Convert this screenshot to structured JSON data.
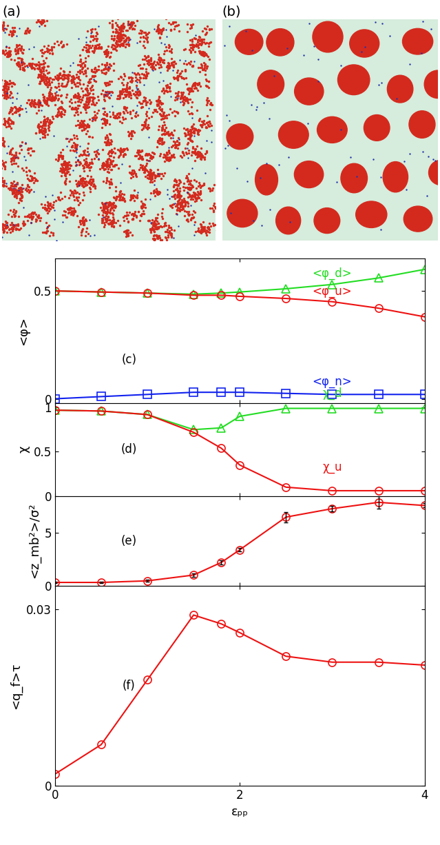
{
  "snapshots": [
    "(a)",
    "(b)"
  ],
  "chart_data": [
    {
      "type": "line",
      "panel": "(c)",
      "y_label": "<φ>",
      "x": [
        0,
        0.5,
        1,
        1.5,
        1.8,
        2,
        2.5,
        3,
        3.5,
        4
      ],
      "series": [
        {
          "name": "<φ_d>",
          "color": "#22dd22",
          "marker": "triangle",
          "values": [
            0.5,
            0.495,
            0.49,
            0.485,
            0.49,
            0.495,
            0.51,
            0.53,
            0.56,
            0.6
          ]
        },
        {
          "name": "<φ_u>",
          "color": "#ee1111",
          "marker": "circle",
          "values": [
            0.5,
            0.495,
            0.49,
            0.48,
            0.48,
            0.475,
            0.465,
            0.45,
            0.42,
            0.38
          ]
        },
        {
          "name": "<φ_n>",
          "color": "#1122ee",
          "marker": "square",
          "values": [
            0.0,
            0.01,
            0.02,
            0.03,
            0.03,
            0.03,
            0.025,
            0.02,
            0.02,
            0.02
          ]
        }
      ],
      "xlim": [
        0,
        4
      ],
      "xticks": [
        0,
        2,
        4
      ],
      "ylim": [
        -0.02,
        0.65
      ],
      "yticks": [
        0,
        0.5
      ],
      "tick_labels": "y"
    },
    {
      "type": "line",
      "panel": "(d)",
      "y_label": "χ",
      "x": [
        0,
        0.5,
        1,
        1.5,
        1.8,
        2,
        2.5,
        3,
        3.5,
        4
      ],
      "series": [
        {
          "name": "χ_d",
          "color": "#22dd22",
          "marker": "triangle",
          "values": [
            0.97,
            0.96,
            0.92,
            0.75,
            0.77,
            0.9,
            0.99,
            0.99,
            0.99,
            0.99
          ]
        },
        {
          "name": "χ_u",
          "color": "#ee1111",
          "marker": "circle",
          "values": [
            0.97,
            0.96,
            0.92,
            0.72,
            0.54,
            0.35,
            0.1,
            0.06,
            0.06,
            0.06
          ]
        }
      ],
      "xlim": [
        0,
        4
      ],
      "xticks": [
        0,
        2,
        4
      ],
      "ylim": [
        0,
        1.05
      ],
      "yticks": [
        0,
        0.5,
        1
      ],
      "tick_labels": "y"
    },
    {
      "type": "line",
      "panel": "(e)",
      "y_label": "<z_mb²>/σ²",
      "x": [
        0,
        0.5,
        1,
        1.5,
        1.8,
        2,
        2.5,
        3,
        3.5,
        4
      ],
      "series": [
        {
          "color": "#ee1111",
          "marker": "circle",
          "values": [
            0.3,
            0.3,
            0.45,
            1.0,
            2.2,
            3.4,
            6.5,
            7.3,
            7.9,
            7.6
          ],
          "errors": [
            0.05,
            0.05,
            0.1,
            0.15,
            0.2,
            0.15,
            0.5,
            0.25,
            0.6,
            0.2
          ]
        }
      ],
      "xlim": [
        0,
        4
      ],
      "xticks": [
        0,
        2,
        4
      ],
      "ylim": [
        0,
        8.5
      ],
      "yticks": [
        0,
        5
      ],
      "tick_labels": "y"
    },
    {
      "type": "line",
      "panel": "(f)",
      "y_label": "<q_f>τ",
      "x_label": "εₚₚ",
      "x": [
        0,
        0.5,
        1,
        1.5,
        1.8,
        2,
        2.5,
        3,
        3.5,
        4
      ],
      "series": [
        {
          "color": "#ee1111",
          "marker": "circle",
          "values": [
            0.002,
            0.007,
            0.018,
            0.029,
            0.0275,
            0.026,
            0.022,
            0.021,
            0.021,
            0.0205
          ]
        }
      ],
      "xlim": [
        0,
        4
      ],
      "xticks": [
        0,
        2,
        4
      ],
      "ylim": [
        0,
        0.034
      ],
      "yticks": [
        0,
        0.03
      ]
    }
  ]
}
